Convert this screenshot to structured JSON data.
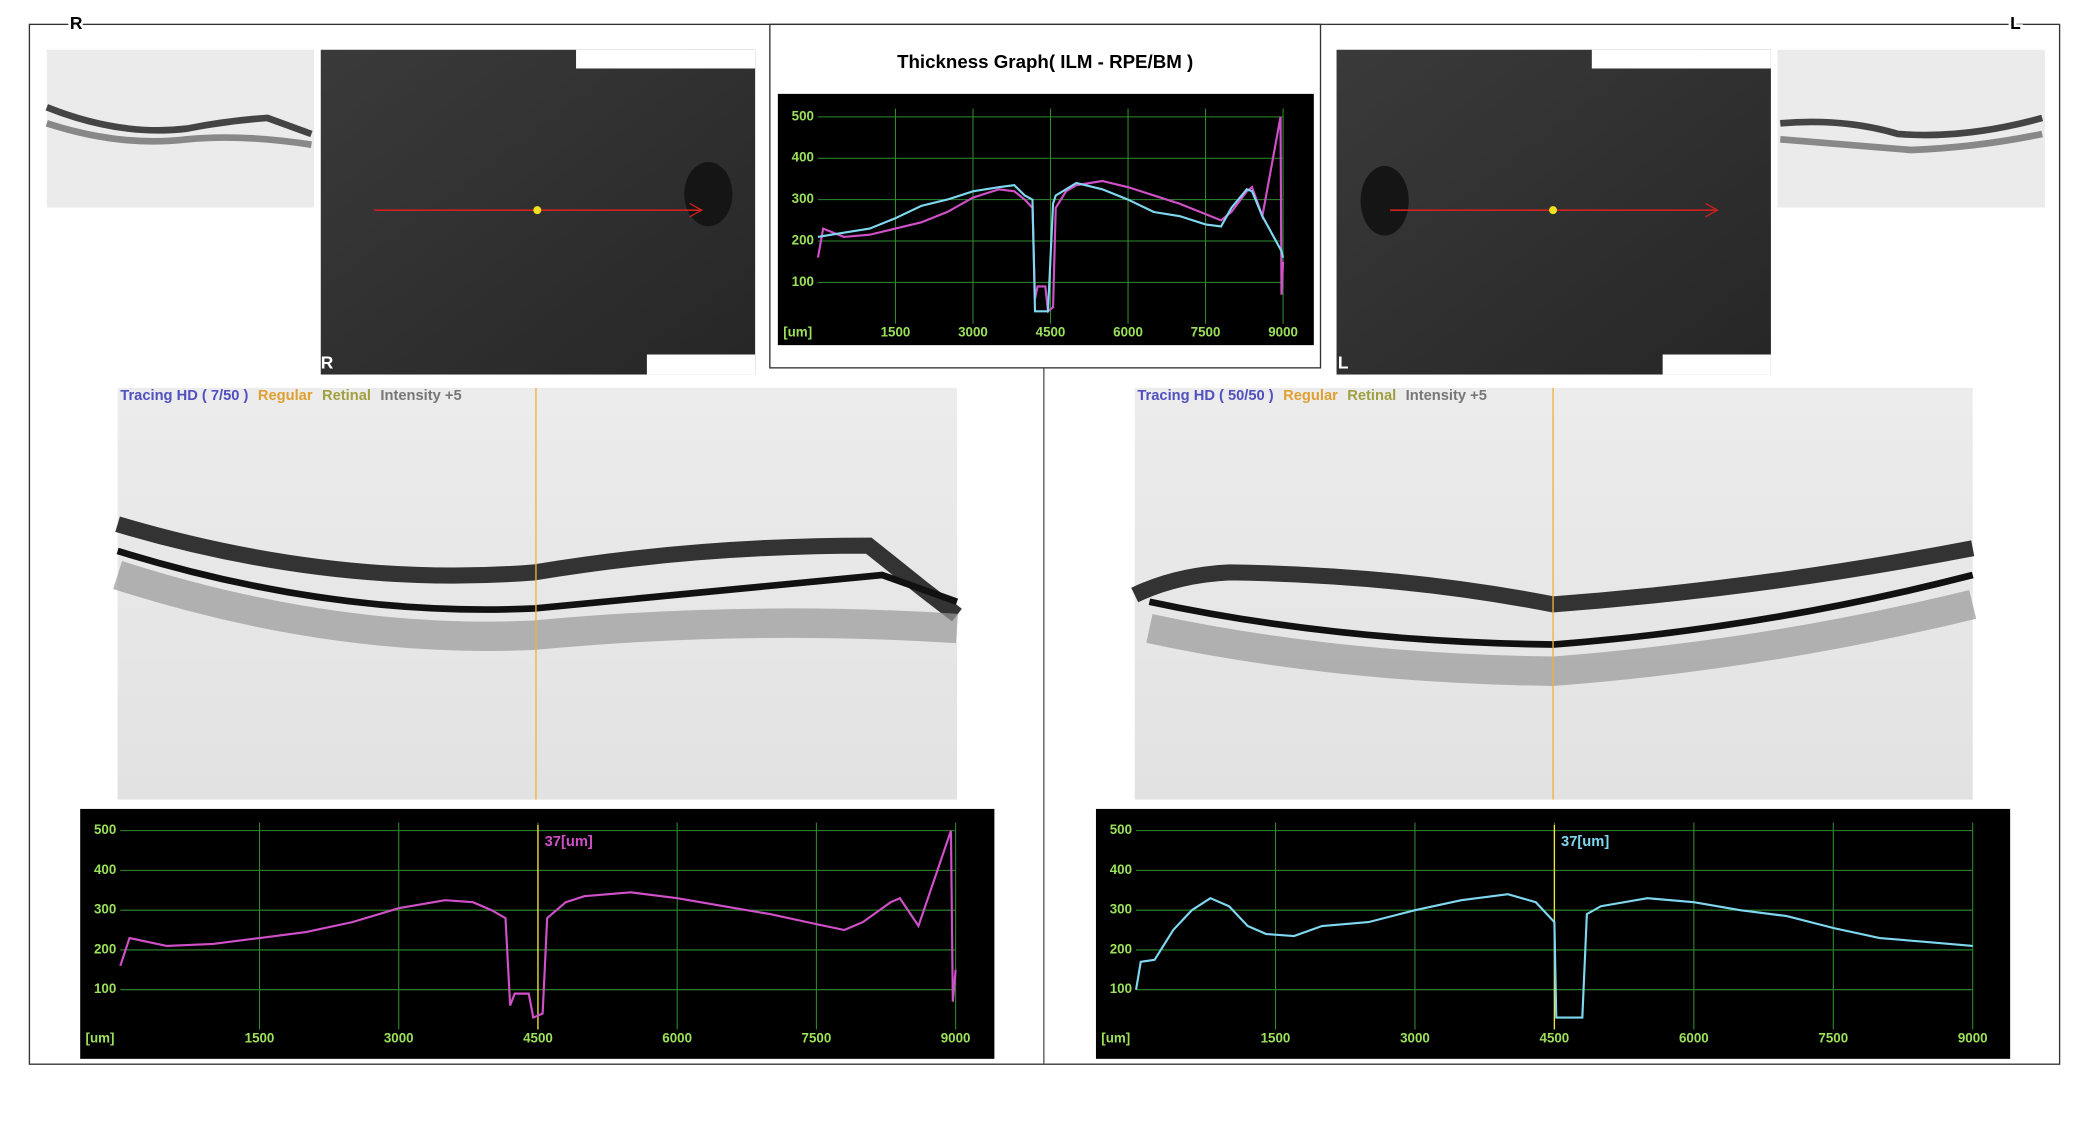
{
  "chart_data": [
    {
      "type": "line",
      "title": "Thickness Graph( ILM - RPE/BM )",
      "xlabel": "[um]",
      "x": [
        0,
        100,
        500,
        1000,
        1500,
        2000,
        2500,
        3000,
        3500,
        3800,
        4000,
        4150,
        4200,
        4250,
        4400,
        4450,
        4550,
        4600,
        4800,
        5000,
        5500,
        6000,
        6500,
        7000,
        7500,
        7800,
        8000,
        8300,
        8400,
        8600,
        8950,
        8970,
        9000
      ],
      "series": [
        {
          "color": "#d050c8",
          "values": [
            160,
            230,
            210,
            215,
            230,
            245,
            270,
            305,
            325,
            320,
            300,
            280,
            60,
            90,
            90,
            30,
            40,
            280,
            320,
            335,
            345,
            330,
            310,
            290,
            265,
            250,
            270,
            320,
            330,
            260,
            500,
            70,
            150
          ]
        },
        {
          "color": "#7fd8f0",
          "values": [
            210,
            212,
            220,
            230,
            255,
            285,
            300,
            320,
            330,
            335,
            310,
            300,
            30,
            30,
            30,
            30,
            290,
            310,
            325,
            340,
            325,
            300,
            270,
            260,
            240,
            235,
            280,
            325,
            320,
            260,
            180,
            175,
            160
          ]
        }
      ],
      "xlim": [
        0,
        9000
      ],
      "ylim": [
        0,
        520
      ],
      "xticks": [
        1500,
        3000,
        4500,
        6000,
        7500,
        9000
      ],
      "yticks": [
        100,
        200,
        300,
        400,
        500
      ],
      "grid": true
    },
    {
      "type": "line",
      "xlabel": "[um]",
      "x": [
        0,
        100,
        500,
        1000,
        1500,
        2000,
        2500,
        3000,
        3500,
        3800,
        4000,
        4150,
        4200,
        4250,
        4400,
        4450,
        4550,
        4600,
        4800,
        5000,
        5500,
        6000,
        6500,
        7000,
        7500,
        7800,
        8000,
        8300,
        8400,
        8600,
        8950,
        8970,
        9000
      ],
      "series": [
        {
          "color": "#d050c8",
          "values": [
            160,
            230,
            210,
            215,
            230,
            245,
            270,
            305,
            325,
            320,
            300,
            280,
            60,
            90,
            90,
            30,
            40,
            280,
            320,
            335,
            345,
            330,
            310,
            290,
            265,
            250,
            270,
            320,
            330,
            260,
            500,
            70,
            150
          ]
        }
      ],
      "cursor": {
        "x": 4500,
        "label": "37[um]"
      },
      "xlim": [
        0,
        9000
      ],
      "ylim": [
        0,
        520
      ],
      "xticks": [
        1500,
        3000,
        4500,
        6000,
        7500,
        9000
      ],
      "yticks": [
        100,
        200,
        300,
        400,
        500
      ],
      "grid": true
    },
    {
      "type": "line",
      "xlabel": "[um]",
      "x": [
        0,
        50,
        200,
        400,
        600,
        800,
        1000,
        1200,
        1400,
        1700,
        2000,
        2500,
        3000,
        3500,
        4000,
        4300,
        4500,
        4520,
        4800,
        4850,
        5000,
        5500,
        6000,
        6500,
        7000,
        7500,
        8000,
        8500,
        9000
      ],
      "series": [
        {
          "color": "#7fd8f0",
          "values": [
            100,
            170,
            175,
            250,
            300,
            330,
            310,
            260,
            240,
            235,
            260,
            270,
            300,
            325,
            340,
            320,
            270,
            30,
            30,
            290,
            310,
            330,
            320,
            300,
            285,
            255,
            230,
            220,
            210
          ]
        }
      ],
      "cursor": {
        "x": 4500,
        "label": "37[um]"
      },
      "xlim": [
        0,
        9000
      ],
      "ylim": [
        0,
        520
      ],
      "xticks": [
        1500,
        3000,
        4500,
        6000,
        7500,
        9000
      ],
      "yticks": [
        100,
        200,
        300,
        400,
        500
      ],
      "grid": true
    }
  ],
  "page": {
    "corner_left": "R",
    "corner_right": "L",
    "fundus_left": "R",
    "fundus_right": "L",
    "scan_left": [
      "Tracing HD ( 7/50 )",
      "Regular",
      "Retinal",
      "Intensity +5"
    ],
    "scan_right": [
      "Tracing HD ( 50/50 )",
      "Regular",
      "Retinal",
      "Intensity +5"
    ]
  }
}
